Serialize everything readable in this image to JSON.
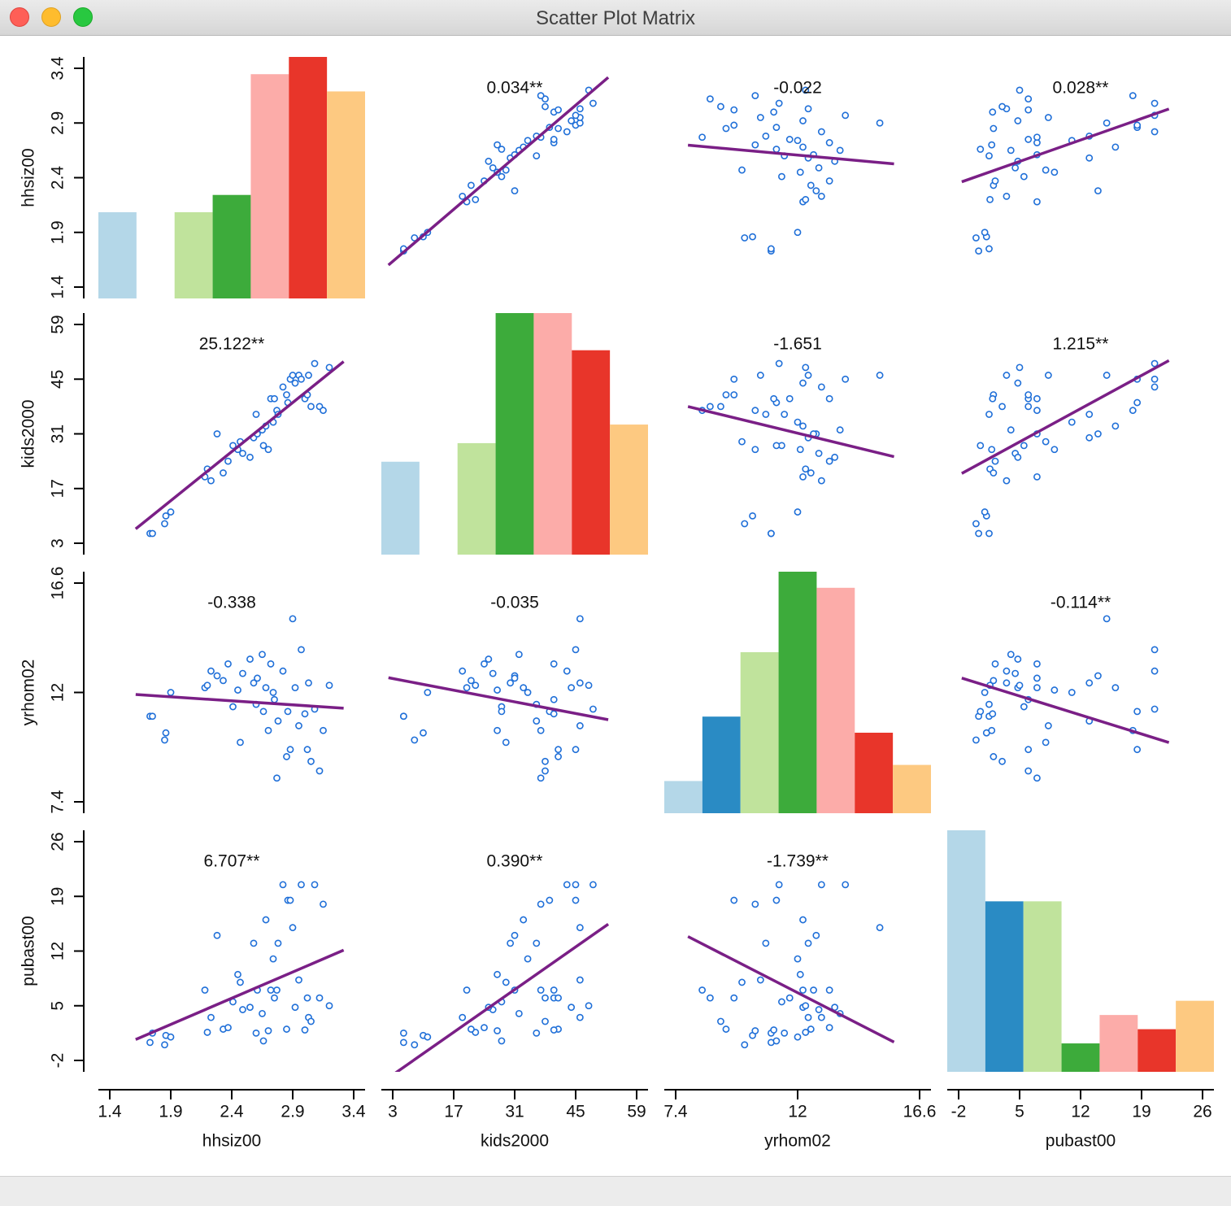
{
  "window": {
    "title": "Scatter Plot Matrix"
  },
  "chart_data": {
    "type": "scatter_matrix",
    "point_color": "#1f6fd8",
    "line_color": "#7a1f86",
    "bin_colors": [
      "#b4d7e8",
      "#2a8bc4",
      "#c0e39c",
      "#3dab3b",
      "#fcaca9",
      "#e8352a",
      "#fdc981"
    ],
    "variables": [
      {
        "name": "hhsiz00",
        "lim": [
          1.4,
          3.4
        ],
        "ticks": [
          1.4,
          1.9,
          2.4,
          2.9,
          3.4
        ],
        "histogram": [
          5,
          0,
          5,
          6,
          13,
          14,
          12
        ],
        "values": [
          1.73,
          1.75,
          1.85,
          1.86,
          1.9,
          2.18,
          2.2,
          2.23,
          2.28,
          2.33,
          2.37,
          2.41,
          2.45,
          2.47,
          2.49,
          2.55,
          2.58,
          2.6,
          2.61,
          2.65,
          2.66,
          2.68,
          2.7,
          2.72,
          2.74,
          2.75,
          2.77,
          2.78,
          2.82,
          2.85,
          2.86,
          2.88,
          2.9,
          2.92,
          2.95,
          2.97,
          3.0,
          3.02,
          3.03,
          3.05,
          3.08,
          3.12,
          3.15,
          3.2
        ]
      },
      {
        "name": "kids2000",
        "lim": [
          3,
          59
        ],
        "ticks": [
          3,
          17,
          31,
          45,
          59
        ],
        "histogram": [
          5,
          0,
          6,
          13,
          13,
          11,
          7
        ],
        "values": [
          5.5,
          5.5,
          8,
          10,
          11,
          20,
          22,
          19,
          31,
          21,
          24,
          28,
          27,
          29,
          26,
          25,
          30,
          36,
          31,
          32,
          28,
          33,
          27,
          40,
          34,
          40,
          37,
          36,
          43,
          41,
          39,
          45,
          46,
          44,
          46,
          45,
          40,
          41,
          46,
          38,
          49,
          38,
          37,
          48
        ]
      },
      {
        "name": "yrhom02",
        "lim": [
          7.4,
          16.6
        ],
        "ticks": [
          7.4,
          12,
          16.6
        ],
        "histogram": [
          2,
          6,
          10,
          15,
          14,
          5,
          3
        ],
        "values": [
          11,
          11,
          10,
          10.3,
          12,
          12.2,
          12.3,
          12.9,
          12.7,
          12.5,
          13.2,
          11.4,
          12.1,
          9.9,
          12.8,
          13.4,
          12.4,
          11.5,
          12.6,
          13.6,
          11.2,
          12.2,
          10.4,
          13.2,
          12.0,
          11.7,
          8.4,
          10.8,
          12.9,
          9.3,
          11.2,
          9.6,
          15.1,
          12.2,
          10.6,
          13.8,
          11.1,
          9.6,
          12.4,
          9.1,
          11.3,
          8.7,
          10.4,
          12.3
        ]
      },
      {
        "name": "pubast00",
        "lim": [
          -2,
          26
        ],
        "ticks": [
          -2,
          5,
          12,
          19,
          26
        ],
        "histogram": [
          17,
          12,
          12,
          2,
          4,
          3,
          5
        ],
        "values": [
          0.3,
          1.5,
          0,
          1.2,
          1.0,
          7,
          1.6,
          3.5,
          14,
          2,
          2.2,
          5.5,
          9,
          8,
          4.5,
          4.8,
          13,
          1.5,
          7,
          4,
          0.5,
          16,
          1.8,
          7,
          11,
          6,
          7,
          13,
          20.5,
          2,
          18.5,
          18.5,
          15,
          4.8,
          8.3,
          20.5,
          1.9,
          6,
          3.5,
          3,
          20.5,
          6,
          18,
          5
        ]
      }
    ],
    "slopes": [
      [
        null,
        0.034,
        -0.022,
        0.028
      ],
      [
        25.122,
        null,
        -1.651,
        1.215
      ],
      [
        -0.338,
        -0.035,
        null,
        -0.114
      ],
      [
        6.707,
        0.39,
        -1.739,
        null
      ]
    ],
    "slope_labels": [
      [
        null,
        "0.034**",
        "-0.022",
        "0.028**"
      ],
      [
        "25.122**",
        null,
        "-1.651",
        "1.215**"
      ],
      [
        "-0.338",
        "-0.035",
        null,
        "-0.114**"
      ],
      [
        "6.707**",
        "0.390**",
        "-1.739**",
        null
      ]
    ]
  }
}
